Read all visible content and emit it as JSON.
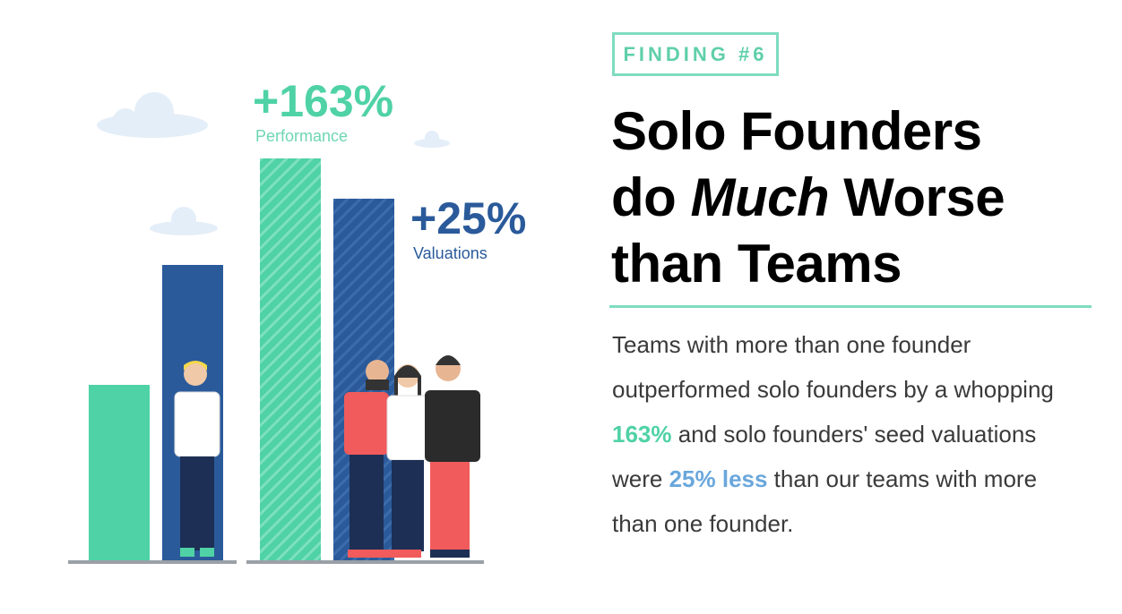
{
  "badge": "FINDING #6",
  "title": {
    "line1": "Solo Founders",
    "line2_pre": "do ",
    "line2_em": "Much",
    "line2_post": " Worse",
    "line3": "than Teams"
  },
  "body": {
    "t1": "Teams with more than one founder outperformed solo founders by a whopping ",
    "h1": "163%",
    "t2": " and solo founders' seed valuations were ",
    "h2": "25% less",
    "t3": " than our teams with more than one founder."
  },
  "stats": [
    {
      "value": "+163%",
      "label": "Performance"
    },
    {
      "value": "+25%",
      "label": "Valuations"
    }
  ],
  "colors": {
    "green": "#4fd2a5",
    "blue": "#2a5a9a",
    "accent_line": "#7fdcc0"
  }
}
